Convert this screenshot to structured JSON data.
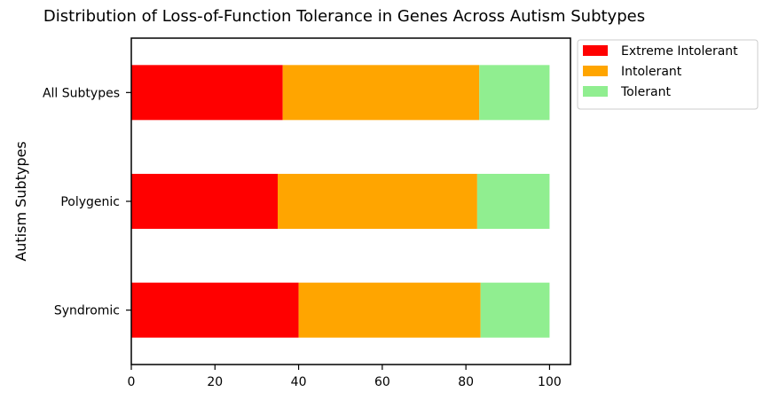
{
  "chart_data": {
    "type": "bar",
    "orientation": "horizontal",
    "stacked": true,
    "title": "Distribution of Loss-of-Function Tolerance in Genes Across Autism Subtypes",
    "xlabel": "",
    "ylabel": "Autism Subtypes",
    "categories": [
      "Syndromic",
      "Polygenic",
      "All Subtypes"
    ],
    "series": [
      {
        "name": "Extreme Intolerant",
        "color": "#ff0000",
        "values": [
          40,
          35,
          36.2
        ]
      },
      {
        "name": "Intolerant",
        "color": "#ffa500",
        "values": [
          43.5,
          47.7,
          47
        ]
      },
      {
        "name": "Tolerant",
        "color": "#90ee90",
        "values": [
          16.5,
          17.3,
          16.8
        ]
      }
    ],
    "xlim": [
      0,
      105
    ],
    "xticks": [
      0,
      20,
      40,
      60,
      80,
      100
    ],
    "grid": false,
    "legend_position": "outside top-right"
  }
}
